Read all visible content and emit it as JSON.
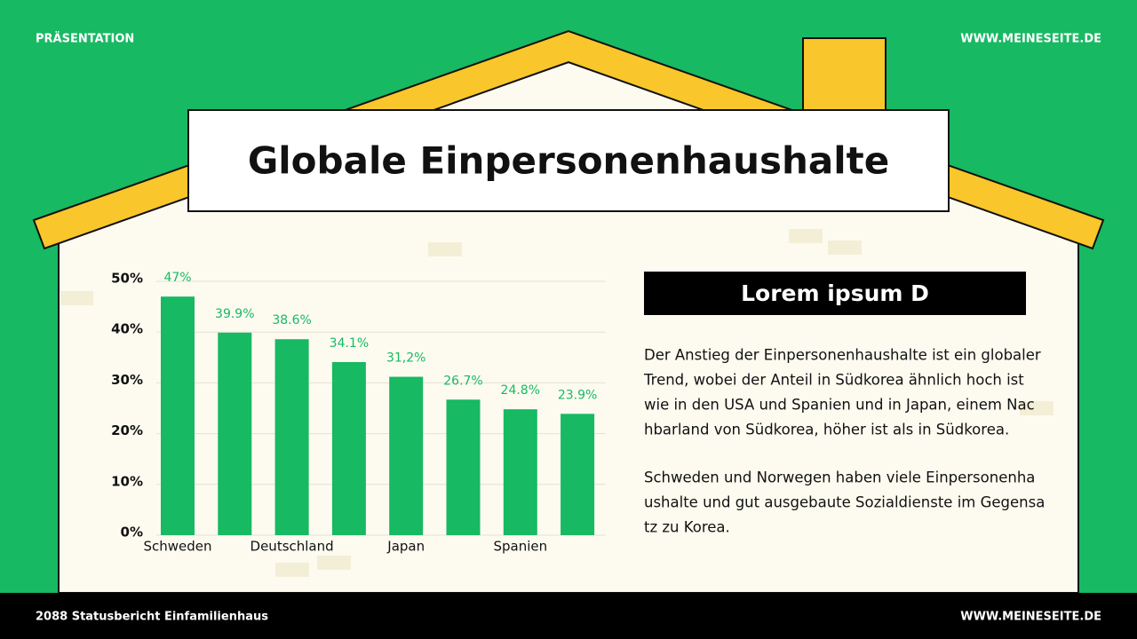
{
  "header": {
    "left": "PRÄSENTATION",
    "right": "WWW.MEINESEITE.DE"
  },
  "title": "Globale Einpersonenhaushalte",
  "chart_data": {
    "type": "bar",
    "categories": [
      "Schweden",
      null,
      "Deutschland",
      null,
      "Japan",
      null,
      "Spanien",
      null
    ],
    "values": [
      47,
      39.9,
      38.6,
      34.1,
      31.2,
      26.7,
      24.8,
      23.9
    ],
    "value_labels": [
      "47%",
      "39.9%",
      "38.6%",
      "34.1%",
      "31,2%",
      "26.7%",
      "24.8%",
      "23.9%"
    ],
    "color": "#17b963",
    "ylim": [
      0,
      50
    ],
    "yticks": [
      {
        "value": 0,
        "label": "0%"
      },
      {
        "value": 10,
        "label": "10%"
      },
      {
        "value": 20,
        "label": "20%"
      },
      {
        "value": 30,
        "label": "30%"
      },
      {
        "value": 40,
        "label": "40%"
      },
      {
        "value": 50,
        "label": "50%"
      }
    ],
    "grid": true
  },
  "panel": {
    "heading": "Lorem ipsum D",
    "paragraphs": [
      [
        "Der Anstieg der Einpersonenhaushalte ist ein globaler",
        "Trend, wobei der Anteil in Südkorea ähnlich hoch ist",
        "wie in den USA und Spanien und in Japan, einem Nac",
        "hbarland von Südkorea, höher ist als in Südkorea."
      ],
      [
        "Schweden und Norwegen haben viele Einpersonenha",
        "ushalte und gut ausgebaute Sozialdienste im Gegensa",
        "tz zu Korea."
      ]
    ]
  },
  "footer": {
    "left": "2088 Statusbericht Einfamilienhaus",
    "right": "WWW.MEINESEITE.DE"
  }
}
